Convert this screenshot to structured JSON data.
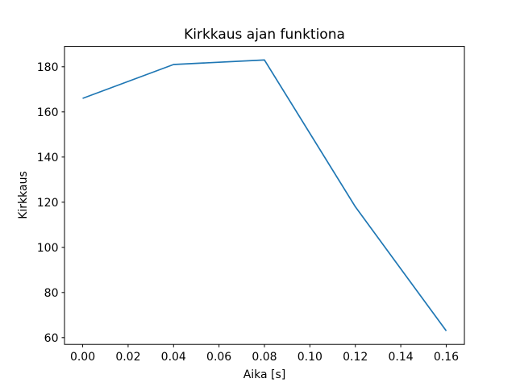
{
  "chart_data": {
    "type": "line",
    "title": "Kirkkaus ajan funktiona",
    "xlabel": "Aika [s]",
    "ylabel": "Kirkkaus",
    "x": [
      0.0,
      0.04,
      0.08,
      0.12,
      0.16
    ],
    "y": [
      166,
      181,
      183,
      118,
      63
    ],
    "series": [
      {
        "name": "Kirkkaus",
        "x": [
          0.0,
          0.04,
          0.08,
          0.12,
          0.16
        ],
        "values": [
          166,
          181,
          183,
          118,
          63
        ]
      }
    ],
    "xticks": [
      0.0,
      0.02,
      0.04,
      0.06,
      0.08,
      0.1,
      0.12,
      0.14,
      0.16
    ],
    "xtick_labels": [
      "0.00",
      "0.02",
      "0.04",
      "0.06",
      "0.08",
      "0.10",
      "0.12",
      "0.14",
      "0.16"
    ],
    "yticks": [
      60,
      80,
      100,
      120,
      140,
      160,
      180
    ],
    "ytick_labels": [
      "60",
      "80",
      "100",
      "120",
      "140",
      "160",
      "180"
    ],
    "xlim": [
      -0.008,
      0.168
    ],
    "ylim": [
      57,
      189
    ],
    "grid": false,
    "legend": null,
    "line_color": "#1f77b4",
    "frame_color": "#000000",
    "background_color": "#ffffff"
  }
}
